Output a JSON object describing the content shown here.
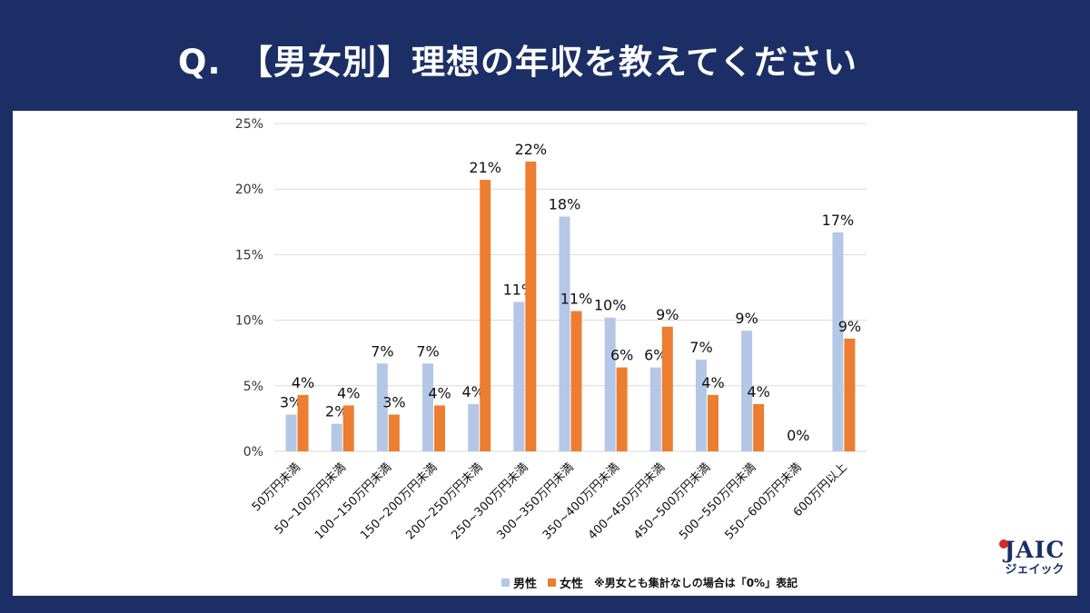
{
  "header": {
    "title": "Q.　【男女別】理想の年収を教えてください"
  },
  "legend": {
    "male_label": "男性",
    "female_label": "女性",
    "note": "※男女とも集計なしの場合は「0%」表記"
  },
  "logo": {
    "main": "JAIC",
    "sub": "ジェイック"
  },
  "colors": {
    "male": "#b4c7e7",
    "female": "#ed7d31",
    "header_bg": "#1b2f66",
    "grid": "#d9d9d9"
  },
  "chart_data": {
    "type": "bar",
    "ylim": [
      0,
      25
    ],
    "yticks": [
      "0%",
      "5%",
      "10%",
      "15%",
      "20%",
      "25%"
    ],
    "categories": [
      "50万円未満",
      "50~100万円未満",
      "100~150万円未満",
      "150~200万円未満",
      "200~250万円未満",
      "250~300万円未満",
      "300~350万円未満",
      "350~400万円未満",
      "400~450万円未満",
      "450~500万円未満",
      "500~550万円未満",
      "550~600万円未満",
      "600万円以上"
    ],
    "series": [
      {
        "name": "男性",
        "values": [
          2.8,
          2.1,
          6.7,
          6.7,
          3.6,
          11.4,
          17.9,
          10.2,
          6.4,
          7.0,
          9.2,
          0,
          16.7
        ],
        "labels": [
          "3%",
          "2%",
          "7%",
          "7%",
          "4%",
          "11%",
          "18%",
          "10%",
          "6%",
          "7%",
          "9%",
          "0%",
          "17%"
        ]
      },
      {
        "name": "女性",
        "values": [
          4.3,
          3.5,
          2.8,
          3.5,
          20.7,
          22.1,
          10.7,
          6.4,
          9.5,
          4.3,
          3.6,
          0,
          8.6
        ],
        "labels": [
          "4%",
          "4%",
          "3%",
          "4%",
          "21%",
          "22%",
          "11%",
          "6%",
          "9%",
          "4%",
          "4%",
          "",
          "9%"
        ]
      }
    ],
    "grid": true,
    "legend_position": "bottom"
  }
}
